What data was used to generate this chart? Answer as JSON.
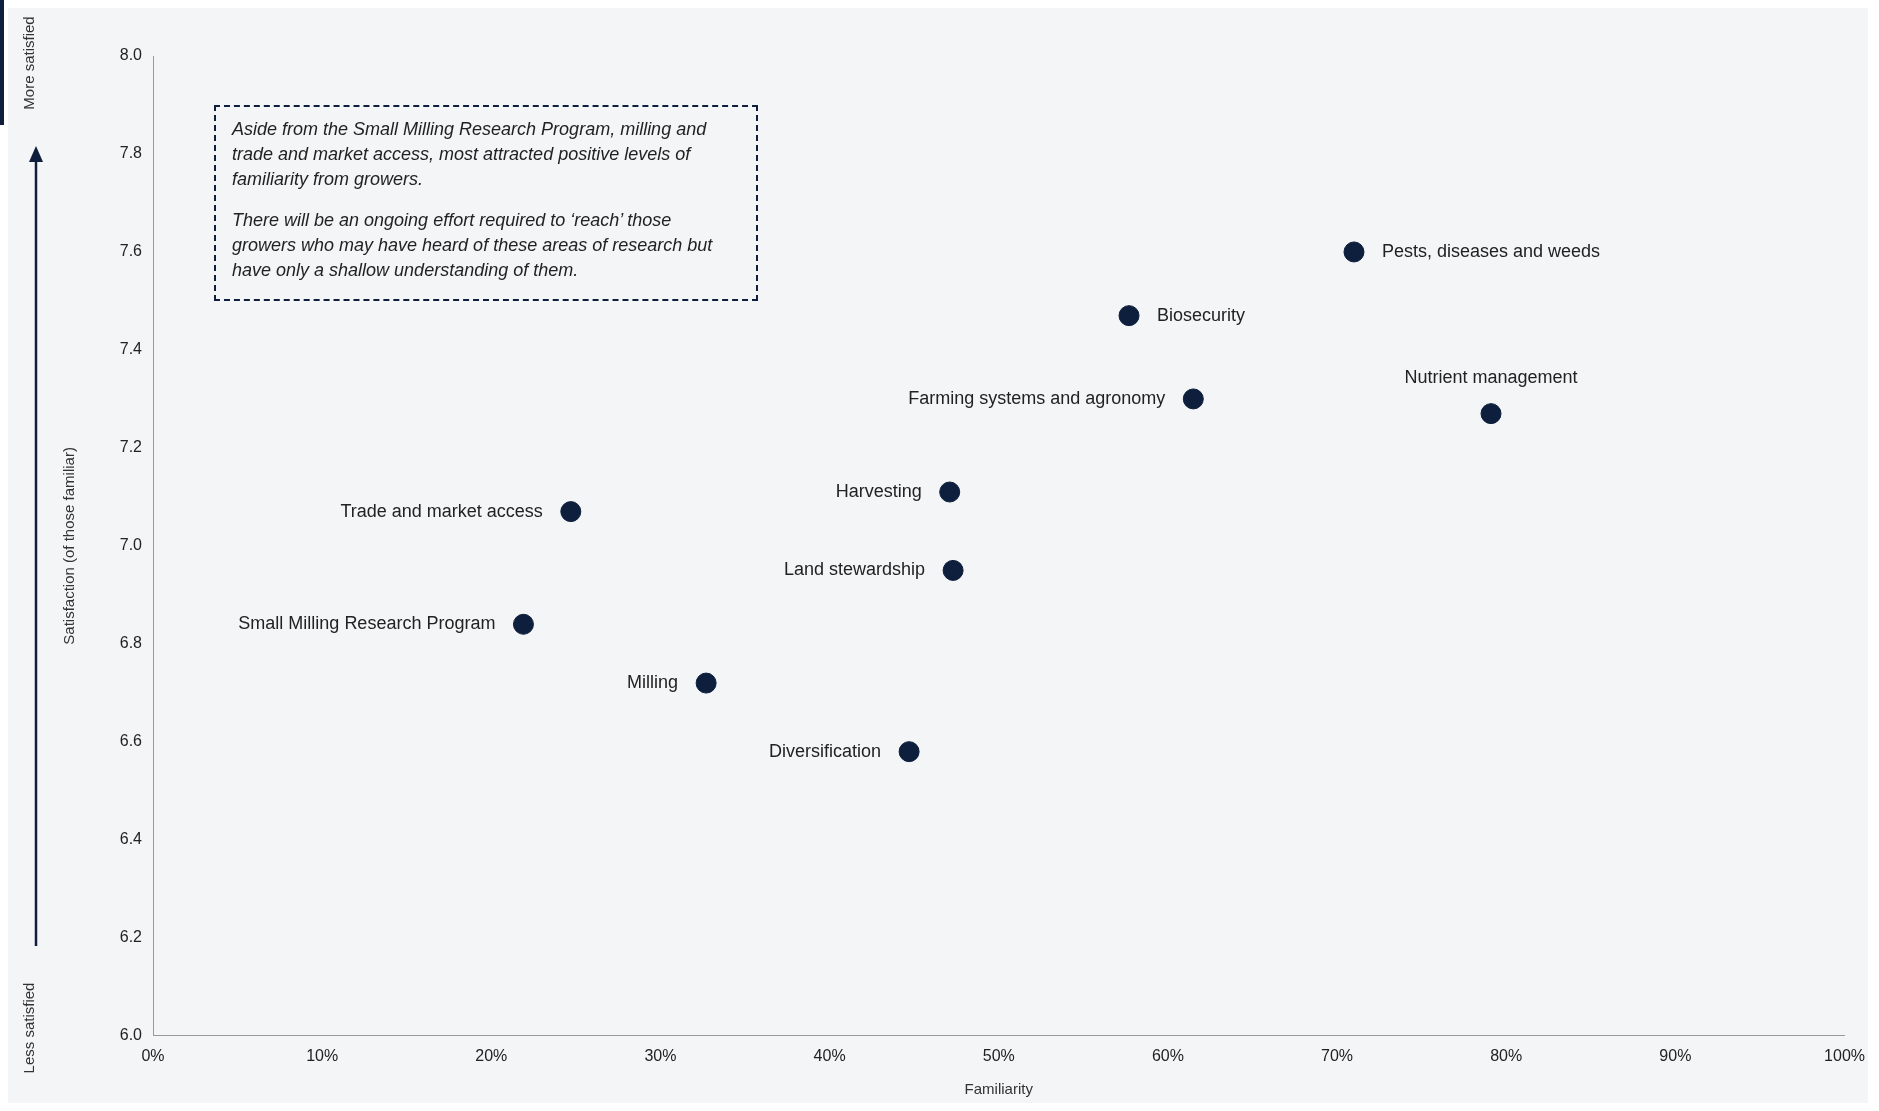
{
  "chart_data": {
    "type": "scatter",
    "xlabel": "Familiarity",
    "ylabel": "Satisfaction (of those familiar)",
    "annotations": [
      "Aside from the Small Milling Research Program, milling and trade and market access, most attracted positive levels of familiarity from growers.",
      "There will be an ongoing effort required to ‘reach’ those growers who may have heard of these areas of research but have only a shallow understanding of them.",
      "More satisfied",
      "Less satisfied"
    ],
    "series": [
      {
        "name": "Pests, diseases and weeds",
        "color": "#0d1f3c",
        "x": [
          71.0
        ],
        "values": [
          7.6
        ]
      },
      {
        "name": "Biosecurity",
        "color": "#0d1f3c",
        "x": [
          57.7
        ],
        "values": [
          7.47
        ]
      },
      {
        "name": "Farming systems and agronomy",
        "color": "#0d1f3c",
        "x": [
          61.5
        ],
        "values": [
          7.3
        ]
      },
      {
        "name": "Nutrient management",
        "color": "#0d1f3c",
        "x": [
          79.1
        ],
        "values": [
          7.27
        ]
      },
      {
        "name": "Harvesting",
        "color": "#0d1f3c",
        "x": [
          47.1
        ],
        "values": [
          7.11
        ]
      },
      {
        "name": "Trade and market access",
        "color": "#0d1f3c",
        "x": [
          24.7
        ],
        "values": [
          7.07
        ]
      },
      {
        "name": "Land stewardship",
        "color": "#0d1f3c",
        "x": [
          47.3
        ],
        "values": [
          6.95
        ]
      },
      {
        "name": "Small Milling Research Program",
        "color": "#0d1f3c",
        "x": [
          21.9
        ],
        "values": [
          6.84
        ]
      },
      {
        "name": "Milling",
        "color": "#0d1f3c",
        "x": [
          32.7
        ],
        "values": [
          6.72
        ]
      },
      {
        "name": "Diversification",
        "color": "#0d1f3c",
        "x": [
          44.7
        ],
        "values": [
          6.58
        ]
      }
    ],
    "xlim": [
      0,
      100
    ],
    "xticks": [
      {
        "value": 0,
        "label": "0%"
      },
      {
        "value": 10,
        "label": "10%"
      },
      {
        "value": 20,
        "label": "20%"
      },
      {
        "value": 30,
        "label": "30%"
      },
      {
        "value": 40,
        "label": "40%"
      },
      {
        "value": 50,
        "label": "50%"
      },
      {
        "value": 60,
        "label": "60%"
      },
      {
        "value": 70,
        "label": "70%"
      },
      {
        "value": 80,
        "label": "80%"
      },
      {
        "value": 90,
        "label": "90%"
      },
      {
        "value": 100,
        "label": "100%"
      }
    ],
    "ylim": [
      6,
      8
    ],
    "yticks": [
      {
        "value": 6,
        "label": "6.0"
      },
      {
        "value": 6.2,
        "label": "6.2"
      },
      {
        "value": 6.4,
        "label": "6.4"
      },
      {
        "value": 6.6,
        "label": "6.6"
      },
      {
        "value": 6.8,
        "label": "6.8"
      },
      {
        "value": 7,
        "label": "7.0"
      },
      {
        "value": 7.2,
        "label": "7.2"
      },
      {
        "value": 7.4,
        "label": "7.4"
      },
      {
        "value": 7.6,
        "label": "7.6"
      },
      {
        "value": 7.8,
        "label": "7.8"
      },
      {
        "value": 8,
        "label": "8.0"
      }
    ],
    "grid": false,
    "legend": false,
    "marker": "circle"
  }
}
